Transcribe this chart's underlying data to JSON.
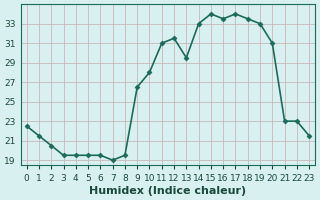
{
  "x": [
    0,
    1,
    2,
    3,
    4,
    5,
    6,
    7,
    8,
    9,
    10,
    11,
    12,
    13,
    14,
    15,
    16,
    17,
    18,
    19,
    20,
    21,
    22,
    23
  ],
  "y": [
    22.5,
    21.5,
    20.5,
    19.5,
    19.5,
    19.5,
    19.5,
    19.0,
    19.5,
    26.5,
    28.0,
    31.0,
    31.5,
    29.5,
    33.0,
    34.0,
    33.5,
    34.0,
    33.5,
    33.0,
    31.0,
    23.0,
    23.0,
    21.5
  ],
  "line_color": "#1a6b5a",
  "marker_color": "#1a6b5a",
  "bg_color": "#d9f0f0",
  "grid_color": "#c8b8b8",
  "xlabel": "Humidex (Indice chaleur)",
  "xlim": [
    -0.5,
    23.5
  ],
  "ylim": [
    18.5,
    35.0
  ],
  "yticks": [
    19,
    21,
    23,
    25,
    27,
    29,
    31,
    33
  ],
  "xtick_labels": [
    "0",
    "1",
    "2",
    "3",
    "4",
    "5",
    "6",
    "7",
    "8",
    "9",
    "10",
    "11",
    "12",
    "13",
    "14",
    "15",
    "16",
    "17",
    "18",
    "19",
    "20",
    "21",
    "22",
    "23"
  ],
  "xlabel_fontsize": 8,
  "tick_fontsize": 6.5,
  "tick_color": "#1a4a3a"
}
